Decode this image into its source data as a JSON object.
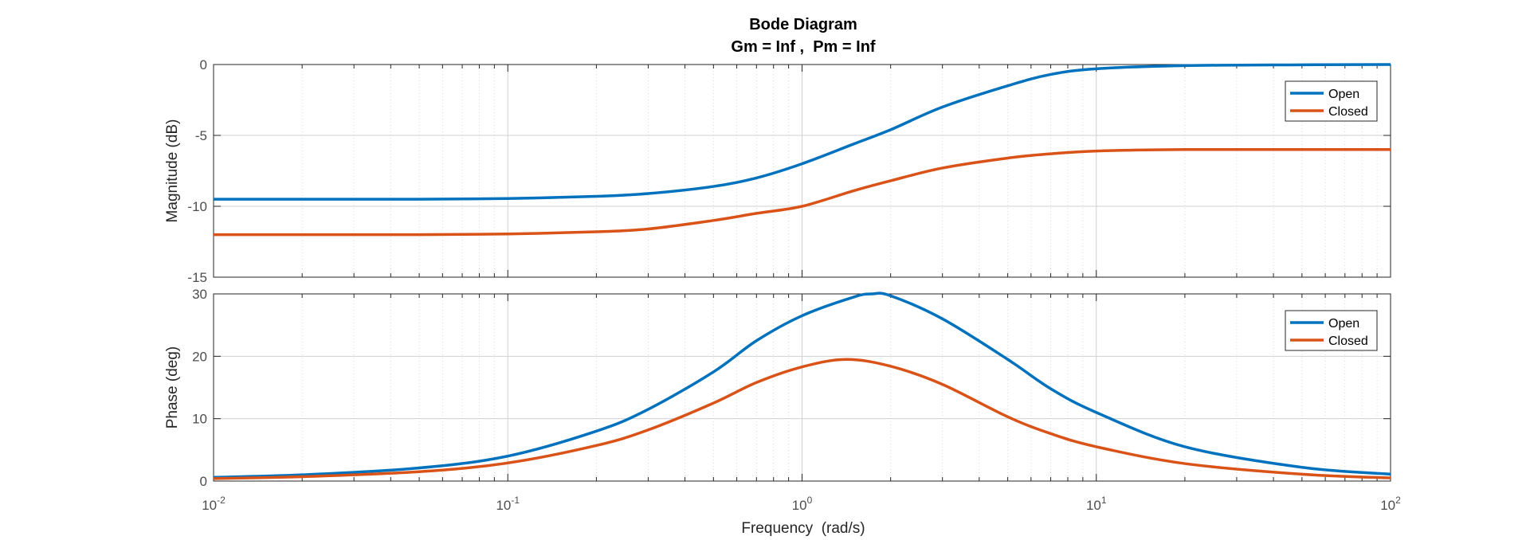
{
  "chart_data": {
    "type": "line",
    "title": "Bode Diagram",
    "subtitle": "Gm = Inf ,  Pm = Inf",
    "xlabel": "Frequency  (rad/s)",
    "x_scale": "log",
    "xlim": [
      0.01,
      100
    ],
    "x_tick_labels": [
      {
        "base": "10",
        "exp": "-2"
      },
      {
        "base": "10",
        "exp": "-1"
      },
      {
        "base": "10",
        "exp": "0"
      },
      {
        "base": "10",
        "exp": "1"
      },
      {
        "base": "10",
        "exp": "2"
      }
    ],
    "grid": true,
    "legend_position": "top-right",
    "colors": {
      "Open": "#0072BD",
      "Closed": "#D95319"
    },
    "panels": [
      {
        "ylabel": "Magnitude (dB)",
        "ylim": [
          -15,
          0
        ],
        "yticks": [
          "-15",
          "-10",
          "-5",
          "0"
        ],
        "series": [
          {
            "name": "Open",
            "x": [
              0.01,
              0.02,
              0.05,
              0.1,
              0.2,
              0.3,
              0.5,
              0.7,
              1,
              1.5,
              2,
              3,
              5,
              7,
              10,
              20,
              50,
              100
            ],
            "y": [
              -9.5,
              -9.5,
              -9.5,
              -9.45,
              -9.3,
              -9.1,
              -8.6,
              -8.0,
              -7.0,
              -5.6,
              -4.6,
              -3.0,
              -1.5,
              -0.7,
              -0.3,
              -0.08,
              -0.02,
              0.0
            ]
          },
          {
            "name": "Closed",
            "x": [
              0.01,
              0.02,
              0.05,
              0.1,
              0.2,
              0.3,
              0.5,
              0.7,
              1,
              1.5,
              2,
              3,
              5,
              7,
              10,
              20,
              50,
              100
            ],
            "y": [
              -12.0,
              -12.0,
              -12.0,
              -11.95,
              -11.8,
              -11.6,
              -11.0,
              -10.5,
              -10.0,
              -8.9,
              -8.2,
              -7.3,
              -6.6,
              -6.3,
              -6.1,
              -6.0,
              -6.0,
              -6.0
            ]
          }
        ]
      },
      {
        "ylabel": "Phase (deg)",
        "ylim": [
          0,
          30
        ],
        "yticks": [
          "0",
          "10",
          "20",
          "30"
        ],
        "series": [
          {
            "name": "Open",
            "x": [
              0.01,
              0.02,
              0.05,
              0.1,
              0.2,
              0.3,
              0.5,
              0.7,
              1,
              1.5,
              1.73,
              2,
              3,
              5,
              7,
              10,
              20,
              50,
              100
            ],
            "y": [
              0.6,
              1.0,
              2.1,
              4.0,
              8.0,
              11.5,
              17.5,
              22.5,
              26.5,
              29.5,
              30.0,
              29.7,
              26.0,
              19.5,
              14.8,
              11.0,
              5.5,
              2.2,
              1.1
            ]
          },
          {
            "name": "Closed",
            "x": [
              0.01,
              0.02,
              0.05,
              0.1,
              0.2,
              0.3,
              0.5,
              0.7,
              1,
              1.41,
              2,
              3,
              5,
              7,
              10,
              20,
              50,
              100
            ],
            "y": [
              0.4,
              0.7,
              1.5,
              2.9,
              5.7,
              8.2,
              12.5,
              15.8,
              18.3,
              19.5,
              18.4,
              15.5,
              10.3,
              7.6,
              5.5,
              2.8,
              1.1,
              0.5
            ]
          }
        ]
      }
    ]
  }
}
